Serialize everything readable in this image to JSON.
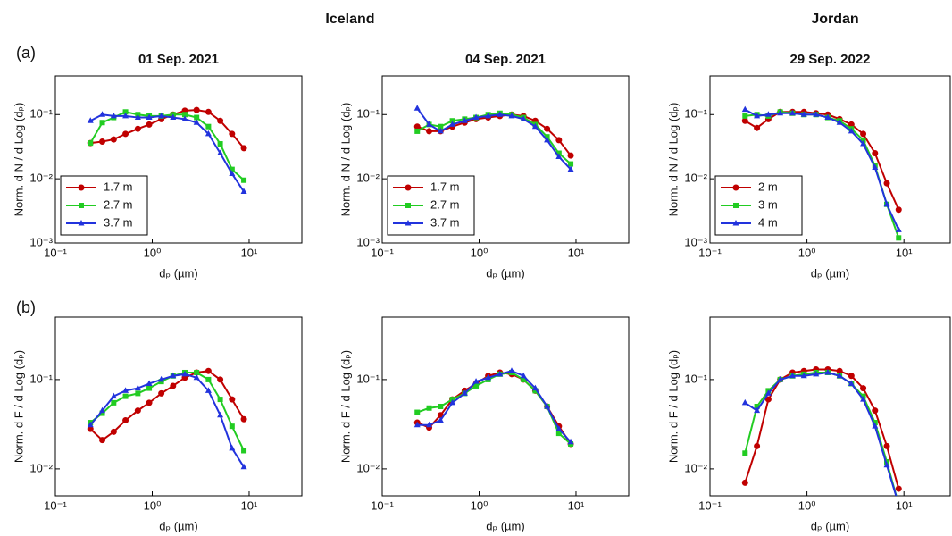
{
  "header": {
    "titles": [
      "Iceland",
      "Jordan"
    ],
    "row_labels": [
      "(a)",
      "(b)"
    ]
  },
  "chart_data": [
    {
      "type": "line",
      "title": "01 Sep. 2021",
      "xlabel": "dₚ (µm)",
      "ylabel": "Norm. d N / d Log (dₚ)",
      "log_x": true,
      "log_y": true,
      "legend": "lower left",
      "x": [
        0.23,
        0.305,
        0.4,
        0.53,
        0.71,
        0.93,
        1.24,
        1.64,
        2.17,
        2.87,
        3.8,
        5.03,
        6.66,
        8.82
      ],
      "xlim": [
        0.1,
        35
      ],
      "xticks": [
        {
          "value": 0.1,
          "label": "10⁻¹"
        },
        {
          "value": 1,
          "label": "10⁰"
        },
        {
          "value": 10,
          "label": "10¹"
        }
      ],
      "ylim": [
        0.001,
        0.4
      ],
      "yticks": [
        {
          "value": 0.001,
          "label": "10⁻³"
        },
        {
          "value": 0.01,
          "label": "10⁻²"
        },
        {
          "value": 0.1,
          "label": "10⁻¹"
        }
      ],
      "series": [
        {
          "name": "1.7 m",
          "color": "#c00000",
          "marker": "circle",
          "values": [
            0.036,
            0.038,
            0.041,
            0.05,
            0.06,
            0.07,
            0.085,
            0.1,
            0.115,
            0.118,
            0.11,
            0.08,
            0.05,
            0.03
          ]
        },
        {
          "name": "2.7 m",
          "color": "#22cc22",
          "marker": "square",
          "values": [
            0.036,
            0.075,
            0.09,
            0.11,
            0.1,
            0.095,
            0.095,
            0.1,
            0.1,
            0.09,
            0.065,
            0.035,
            0.014,
            0.0095
          ]
        },
        {
          "name": "3.7 m",
          "color": "#2233dd",
          "marker": "triangle",
          "values": [
            0.08,
            0.1,
            0.095,
            0.095,
            0.09,
            0.09,
            0.095,
            0.09,
            0.085,
            0.075,
            0.05,
            0.025,
            0.012,
            0.0063
          ]
        }
      ]
    },
    {
      "type": "line",
      "title": "04 Sep. 2021",
      "xlabel": "dₚ (µm)",
      "ylabel": "Norm. d N / d Log (dₚ)",
      "log_x": true,
      "log_y": true,
      "legend": "lower left",
      "x": [
        0.23,
        0.305,
        0.4,
        0.53,
        0.71,
        0.93,
        1.24,
        1.64,
        2.17,
        2.87,
        3.8,
        5.03,
        6.66,
        8.82
      ],
      "xlim": [
        0.1,
        35
      ],
      "xticks": [
        {
          "value": 0.1,
          "label": "10⁻¹"
        },
        {
          "value": 1,
          "label": "10⁰"
        },
        {
          "value": 10,
          "label": "10¹"
        }
      ],
      "ylim": [
        0.001,
        0.4
      ],
      "yticks": [
        {
          "value": 0.001,
          "label": "10⁻³"
        },
        {
          "value": 0.01,
          "label": "10⁻²"
        },
        {
          "value": 0.1,
          "label": "10⁻¹"
        }
      ],
      "series": [
        {
          "name": "1.7 m",
          "color": "#c00000",
          "marker": "circle",
          "values": [
            0.065,
            0.055,
            0.055,
            0.065,
            0.075,
            0.085,
            0.09,
            0.095,
            0.1,
            0.095,
            0.08,
            0.06,
            0.04,
            0.023
          ]
        },
        {
          "name": "2.7 m",
          "color": "#22cc22",
          "marker": "square",
          "values": [
            0.055,
            0.07,
            0.065,
            0.08,
            0.085,
            0.09,
            0.1,
            0.105,
            0.1,
            0.09,
            0.07,
            0.045,
            0.025,
            0.017
          ]
        },
        {
          "name": "3.7 m",
          "color": "#2233dd",
          "marker": "triangle",
          "values": [
            0.125,
            0.07,
            0.055,
            0.07,
            0.08,
            0.09,
            0.095,
            0.1,
            0.095,
            0.085,
            0.065,
            0.04,
            0.022,
            0.014
          ]
        }
      ]
    },
    {
      "type": "line",
      "title": "29 Sep. 2022",
      "xlabel": "dₚ (µm)",
      "ylabel": "Norm. d N / d Log (dₚ)",
      "log_x": true,
      "log_y": true,
      "legend": "lower left",
      "x": [
        0.23,
        0.305,
        0.4,
        0.53,
        0.71,
        0.93,
        1.24,
        1.64,
        2.17,
        2.87,
        3.8,
        5.03,
        6.66,
        8.82
      ],
      "xlim": [
        0.1,
        30
      ],
      "xticks": [
        {
          "value": 0.1,
          "label": "10⁻¹"
        },
        {
          "value": 1,
          "label": "10⁰"
        },
        {
          "value": 10,
          "label": "10¹"
        }
      ],
      "ylim": [
        0.001,
        0.4
      ],
      "yticks": [
        {
          "value": 0.001,
          "label": "10⁻³"
        },
        {
          "value": 0.01,
          "label": "10⁻²"
        },
        {
          "value": 0.1,
          "label": "10⁻¹"
        }
      ],
      "series": [
        {
          "name": "2 m",
          "color": "#c00000",
          "marker": "circle",
          "values": [
            0.08,
            0.062,
            0.085,
            0.11,
            0.11,
            0.11,
            0.105,
            0.1,
            0.085,
            0.07,
            0.05,
            0.025,
            0.0085,
            0.0033
          ]
        },
        {
          "name": "3 m",
          "color": "#22cc22",
          "marker": "square",
          "values": [
            0.095,
            0.1,
            0.095,
            0.11,
            0.105,
            0.1,
            0.1,
            0.09,
            0.08,
            0.06,
            0.04,
            0.016,
            0.004,
            0.0012
          ]
        },
        {
          "name": "4 m",
          "color": "#2233dd",
          "marker": "triangle",
          "values": [
            0.12,
            0.095,
            0.1,
            0.105,
            0.105,
            0.1,
            0.1,
            0.09,
            0.075,
            0.055,
            0.035,
            0.015,
            0.004,
            0.0016
          ]
        }
      ]
    },
    {
      "type": "line",
      "xlabel": "dₚ (µm)",
      "ylabel": "Norm. d F / d Log (dₚ)",
      "log_x": true,
      "log_y": true,
      "x": [
        0.23,
        0.305,
        0.4,
        0.53,
        0.71,
        0.93,
        1.24,
        1.64,
        2.17,
        2.87,
        3.8,
        5.03,
        6.66,
        8.82
      ],
      "xlim": [
        0.1,
        35
      ],
      "xticks": [
        {
          "value": 0.1,
          "label": "10⁻¹"
        },
        {
          "value": 1,
          "label": "10⁰"
        },
        {
          "value": 10,
          "label": "10¹"
        }
      ],
      "ylim": [
        0.005,
        0.5
      ],
      "yticks": [
        {
          "value": 0.01,
          "label": "10⁻²"
        },
        {
          "value": 0.1,
          "label": "10⁻¹"
        }
      ],
      "series": [
        {
          "color": "#c00000",
          "marker": "circle",
          "values": [
            0.028,
            0.021,
            0.026,
            0.035,
            0.045,
            0.055,
            0.07,
            0.085,
            0.105,
            0.12,
            0.125,
            0.1,
            0.06,
            0.036
          ]
        },
        {
          "color": "#22cc22",
          "marker": "square",
          "values": [
            0.033,
            0.042,
            0.055,
            0.065,
            0.07,
            0.08,
            0.095,
            0.11,
            0.12,
            0.12,
            0.1,
            0.06,
            0.03,
            0.016
          ]
        },
        {
          "color": "#2233dd",
          "marker": "triangle",
          "values": [
            0.031,
            0.045,
            0.065,
            0.075,
            0.08,
            0.09,
            0.1,
            0.11,
            0.115,
            0.105,
            0.075,
            0.04,
            0.017,
            0.0105
          ]
        }
      ]
    },
    {
      "type": "line",
      "xlabel": "dₚ (µm)",
      "ylabel": "Norm. d F / d Log (dₚ)",
      "log_x": true,
      "log_y": true,
      "x": [
        0.23,
        0.305,
        0.4,
        0.53,
        0.71,
        0.93,
        1.24,
        1.64,
        2.17,
        2.87,
        3.8,
        5.03,
        6.66,
        8.82
      ],
      "xlim": [
        0.1,
        35
      ],
      "xticks": [
        {
          "value": 0.1,
          "label": "10⁻¹"
        },
        {
          "value": 1,
          "label": "10⁰"
        },
        {
          "value": 10,
          "label": "10¹"
        }
      ],
      "ylim": [
        0.005,
        0.5
      ],
      "yticks": [
        {
          "value": 0.01,
          "label": "10⁻²"
        },
        {
          "value": 0.1,
          "label": "10⁻¹"
        }
      ],
      "series": [
        {
          "color": "#c00000",
          "marker": "circle",
          "values": [
            0.033,
            0.029,
            0.04,
            0.06,
            0.075,
            0.09,
            0.11,
            0.12,
            0.115,
            0.1,
            0.075,
            0.05,
            0.03,
            0.019
          ]
        },
        {
          "color": "#22cc22",
          "marker": "square",
          "values": [
            0.043,
            0.048,
            0.05,
            0.06,
            0.07,
            0.085,
            0.1,
            0.115,
            0.12,
            0.1,
            0.075,
            0.05,
            0.025,
            0.019
          ]
        },
        {
          "color": "#2233dd",
          "marker": "triangle",
          "values": [
            0.031,
            0.031,
            0.035,
            0.055,
            0.07,
            0.095,
            0.105,
            0.115,
            0.125,
            0.11,
            0.08,
            0.05,
            0.028,
            0.02
          ]
        }
      ]
    },
    {
      "type": "line",
      "xlabel": "dₚ (µm)",
      "ylabel": "Norm. d F / d Log (dₚ)",
      "log_x": true,
      "log_y": true,
      "x": [
        0.23,
        0.305,
        0.4,
        0.53,
        0.71,
        0.93,
        1.24,
        1.64,
        2.17,
        2.87,
        3.8,
        5.03,
        6.66,
        8.82
      ],
      "xlim": [
        0.1,
        30
      ],
      "xticks": [
        {
          "value": 0.1,
          "label": "10⁻¹"
        },
        {
          "value": 1,
          "label": "10⁰"
        },
        {
          "value": 10,
          "label": "10¹"
        }
      ],
      "ylim": [
        0.005,
        0.5
      ],
      "yticks": [
        {
          "value": 0.01,
          "label": "10⁻²"
        },
        {
          "value": 0.1,
          "label": "10⁻¹"
        }
      ],
      "series": [
        {
          "color": "#c00000",
          "marker": "circle",
          "values": [
            0.007,
            0.018,
            0.06,
            0.1,
            0.12,
            0.125,
            0.13,
            0.13,
            0.125,
            0.11,
            0.08,
            0.045,
            0.018,
            0.006
          ]
        },
        {
          "color": "#22cc22",
          "marker": "square",
          "values": [
            0.015,
            0.05,
            0.075,
            0.1,
            0.11,
            0.115,
            0.12,
            0.12,
            0.11,
            0.09,
            0.065,
            0.033,
            0.012,
            0.004
          ]
        },
        {
          "color": "#2233dd",
          "marker": "triangle",
          "values": [
            0.055,
            0.045,
            0.07,
            0.1,
            0.11,
            0.11,
            0.115,
            0.12,
            0.11,
            0.09,
            0.06,
            0.03,
            0.011,
            0.004
          ]
        }
      ]
    }
  ]
}
